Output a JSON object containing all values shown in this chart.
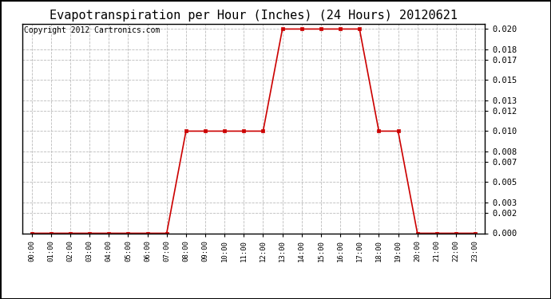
{
  "title": "Evapotranspiration per Hour (Inches) (24 Hours) 20120621",
  "copyright": "Copyright 2012 Cartronics.com",
  "hours": [
    0,
    1,
    2,
    3,
    4,
    5,
    6,
    7,
    8,
    9,
    10,
    11,
    12,
    13,
    14,
    15,
    16,
    17,
    18,
    19,
    20,
    21,
    22,
    23
  ],
  "values": [
    0.0,
    0.0,
    0.0,
    0.0,
    0.0,
    0.0,
    0.0,
    0.0,
    0.01,
    0.01,
    0.01,
    0.01,
    0.01,
    0.02,
    0.02,
    0.02,
    0.02,
    0.02,
    0.01,
    0.01,
    0.0,
    0.0,
    0.0,
    0.0
  ],
  "line_color": "#cc0000",
  "marker": "s",
  "marker_size": 3,
  "background_color": "#ffffff",
  "plot_bg_color": "#ffffff",
  "grid_color": "#bbbbbb",
  "ylim": [
    0,
    0.0205
  ],
  "yticks": [
    0.0,
    0.002,
    0.003,
    0.005,
    0.007,
    0.008,
    0.01,
    0.012,
    0.013,
    0.015,
    0.017,
    0.018,
    0.02
  ],
  "title_fontsize": 11,
  "copyright_fontsize": 7
}
